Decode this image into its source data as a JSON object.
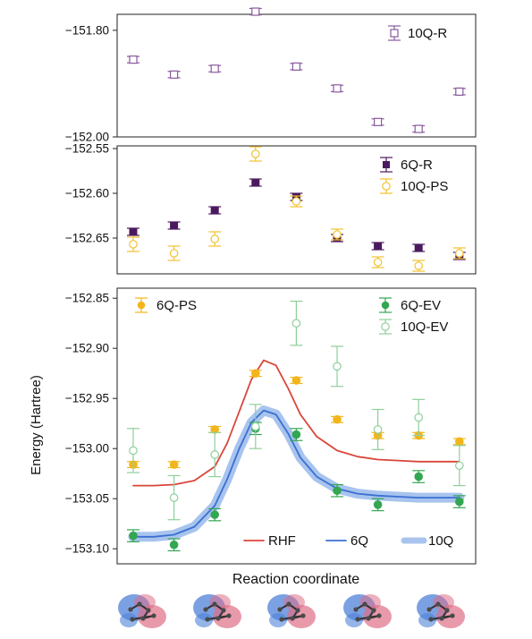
{
  "chart_data": [
    {
      "type": "scatter",
      "panel": "top",
      "ylim": [
        -152.0,
        -151.77
      ],
      "yticks": [
        -151.8,
        -152.0
      ],
      "ytick_labels": [
        "−151.80",
        "−152.00"
      ],
      "legend_position": "top-right",
      "series": [
        {
          "name": "10Q-R",
          "color": "#8a5a9c",
          "marker": "open-square",
          "x": [
            1,
            2,
            3,
            4,
            5,
            6,
            7,
            8,
            9
          ],
          "y": [
            -151.855,
            -151.883,
            -151.872,
            -151.765,
            -151.868,
            -151.909,
            -151.972,
            -151.985,
            -151.915
          ],
          "err": [
            0.006,
            0.006,
            0.006,
            0.006,
            0.006,
            0.006,
            0.006,
            0.006,
            0.006
          ]
        }
      ]
    },
    {
      "type": "scatter",
      "panel": "middle",
      "ylim": [
        -152.69,
        -152.547
      ],
      "yticks": [
        -152.55,
        -152.6,
        -152.65
      ],
      "ytick_labels": [
        "−152.55",
        "−152.60",
        "−152.65"
      ],
      "legend_position": "top-right",
      "series": [
        {
          "name": "6Q-R",
          "color": "#4b1a5e",
          "marker": "filled-square",
          "x": [
            1,
            2,
            3,
            4,
            5,
            6,
            7,
            8,
            9
          ],
          "y": [
            -152.643,
            -152.636,
            -152.619,
            -152.588,
            -152.604,
            -152.65,
            -152.659,
            -152.661,
            -152.67
          ],
          "err": [
            0.004,
            0.004,
            0.004,
            0.004,
            0.004,
            0.004,
            0.004,
            0.004,
            0.004
          ]
        },
        {
          "name": "10Q-PS",
          "color": "#f2c230",
          "marker": "open-circle",
          "x": [
            1,
            2,
            3,
            4,
            5,
            6,
            7,
            8,
            9
          ],
          "y": [
            -152.657,
            -152.667,
            -152.651,
            -152.556,
            -152.609,
            -152.646,
            -152.677,
            -152.681,
            -152.667
          ],
          "err": [
            0.008,
            0.008,
            0.008,
            0.008,
            0.006,
            0.006,
            0.006,
            0.006,
            0.006
          ]
        }
      ]
    },
    {
      "type": "line",
      "panel": "bottom",
      "xlabel": "Reaction coordinate",
      "ylabel": "Energy (Hartree)",
      "ylim": [
        -153.115,
        -152.84
      ],
      "yticks": [
        -152.85,
        -152.9,
        -152.95,
        -153.0,
        -153.05,
        -153.1
      ],
      "ytick_labels": [
        "−152.85",
        "−152.90",
        "−152.95",
        "−153.00",
        "−153.05",
        "−153.10"
      ],
      "curves": [
        {
          "name": "RHF",
          "color": "#d9463a",
          "width": 1.8,
          "x": [
            1,
            1.5,
            2,
            2.5,
            3,
            3.3,
            3.6,
            3.9,
            4.2,
            4.5,
            4.8,
            5.1,
            5.5,
            6,
            6.5,
            7,
            7.5,
            8,
            8.5,
            9
          ],
          "y": [
            -153.037,
            -153.037,
            -153.036,
            -153.032,
            -153.018,
            -152.995,
            -152.963,
            -152.931,
            -152.912,
            -152.917,
            -152.94,
            -152.966,
            -152.988,
            -153.002,
            -153.008,
            -153.011,
            -153.012,
            -153.013,
            -153.013,
            -153.013
          ]
        },
        {
          "name": "10Q",
          "color": "#a8c4ee",
          "width": 11,
          "x": [
            1,
            1.5,
            2,
            2.5,
            3,
            3.3,
            3.6,
            3.9,
            4.2,
            4.5,
            4.8,
            5.1,
            5.5,
            6,
            6.5,
            7,
            7.5,
            8,
            8.5,
            9
          ],
          "y": [
            -153.088,
            -153.088,
            -153.086,
            -153.078,
            -153.057,
            -153.031,
            -153.0,
            -152.974,
            -152.962,
            -152.966,
            -152.985,
            -153.009,
            -153.028,
            -153.04,
            -153.045,
            -153.047,
            -153.048,
            -153.049,
            -153.049,
            -153.049
          ]
        },
        {
          "name": "6Q",
          "color": "#3a6fd1",
          "width": 1.8,
          "x": [
            1,
            1.5,
            2,
            2.5,
            3,
            3.3,
            3.6,
            3.9,
            4.2,
            4.5,
            4.8,
            5.1,
            5.5,
            6,
            6.5,
            7,
            7.5,
            8,
            8.5,
            9
          ],
          "y": [
            -153.088,
            -153.088,
            -153.086,
            -153.078,
            -153.057,
            -153.031,
            -153.0,
            -152.974,
            -152.962,
            -152.966,
            -152.985,
            -153.009,
            -153.028,
            -153.04,
            -153.045,
            -153.047,
            -153.048,
            -153.049,
            -153.049,
            -153.049
          ]
        }
      ],
      "series": [
        {
          "name": "6Q-PS",
          "color": "#f2b61c",
          "marker": "filled-circle",
          "x": [
            1,
            2,
            3,
            4,
            5,
            6,
            7,
            8,
            9
          ],
          "y": [
            -153.016,
            -153.016,
            -152.981,
            -152.925,
            -152.932,
            -152.971,
            -152.987,
            -152.987,
            -152.993
          ],
          "err": [
            0.003,
            0.003,
            0.003,
            0.003,
            0.003,
            0.003,
            0.003,
            0.003,
            0.003
          ]
        },
        {
          "name": "6Q-EV",
          "color": "#33a651",
          "marker": "filled-circle",
          "x": [
            1,
            2,
            3,
            4,
            5,
            6,
            7,
            8,
            9
          ],
          "y": [
            -153.087,
            -153.096,
            -153.066,
            -152.98,
            -152.986,
            -153.042,
            -153.056,
            -153.028,
            -153.053
          ],
          "err": [
            0.006,
            0.006,
            0.006,
            0.006,
            0.006,
            0.006,
            0.006,
            0.006,
            0.006
          ]
        },
        {
          "name": "10Q-EV",
          "color": "#8fcf9b",
          "marker": "open-circle",
          "x": [
            1,
            2,
            3,
            4,
            5,
            6,
            7,
            8,
            9
          ],
          "y": [
            -153.002,
            -153.049,
            -153.006,
            -152.978,
            -152.875,
            -152.918,
            -152.981,
            -152.969,
            -153.017
          ],
          "err": [
            0.022,
            0.022,
            0.022,
            0.022,
            0.022,
            0.02,
            0.02,
            0.018,
            0.02
          ]
        }
      ],
      "legend_top_left": [
        "6Q-PS"
      ],
      "legend_top_right": [
        "6Q-EV",
        "10Q-EV"
      ],
      "legend_bottom_right": [
        "RHF",
        "6Q",
        "10Q"
      ]
    }
  ],
  "molecules": [
    {
      "icon": "molecule-structure-icon",
      "color_pos": "#4f82d8",
      "color_neg": "#de6f88"
    },
    {
      "icon": "molecule-structure-icon",
      "color_pos": "#4f82d8",
      "color_neg": "#de6f88"
    },
    {
      "icon": "molecule-structure-icon",
      "color_pos": "#4f82d8",
      "color_neg": "#de6f88"
    },
    {
      "icon": "molecule-structure-icon",
      "color_pos": "#4f82d8",
      "color_neg": "#de6f88"
    },
    {
      "icon": "molecule-structure-icon",
      "color_pos": "#4f82d8",
      "color_neg": "#de6f88"
    }
  ]
}
